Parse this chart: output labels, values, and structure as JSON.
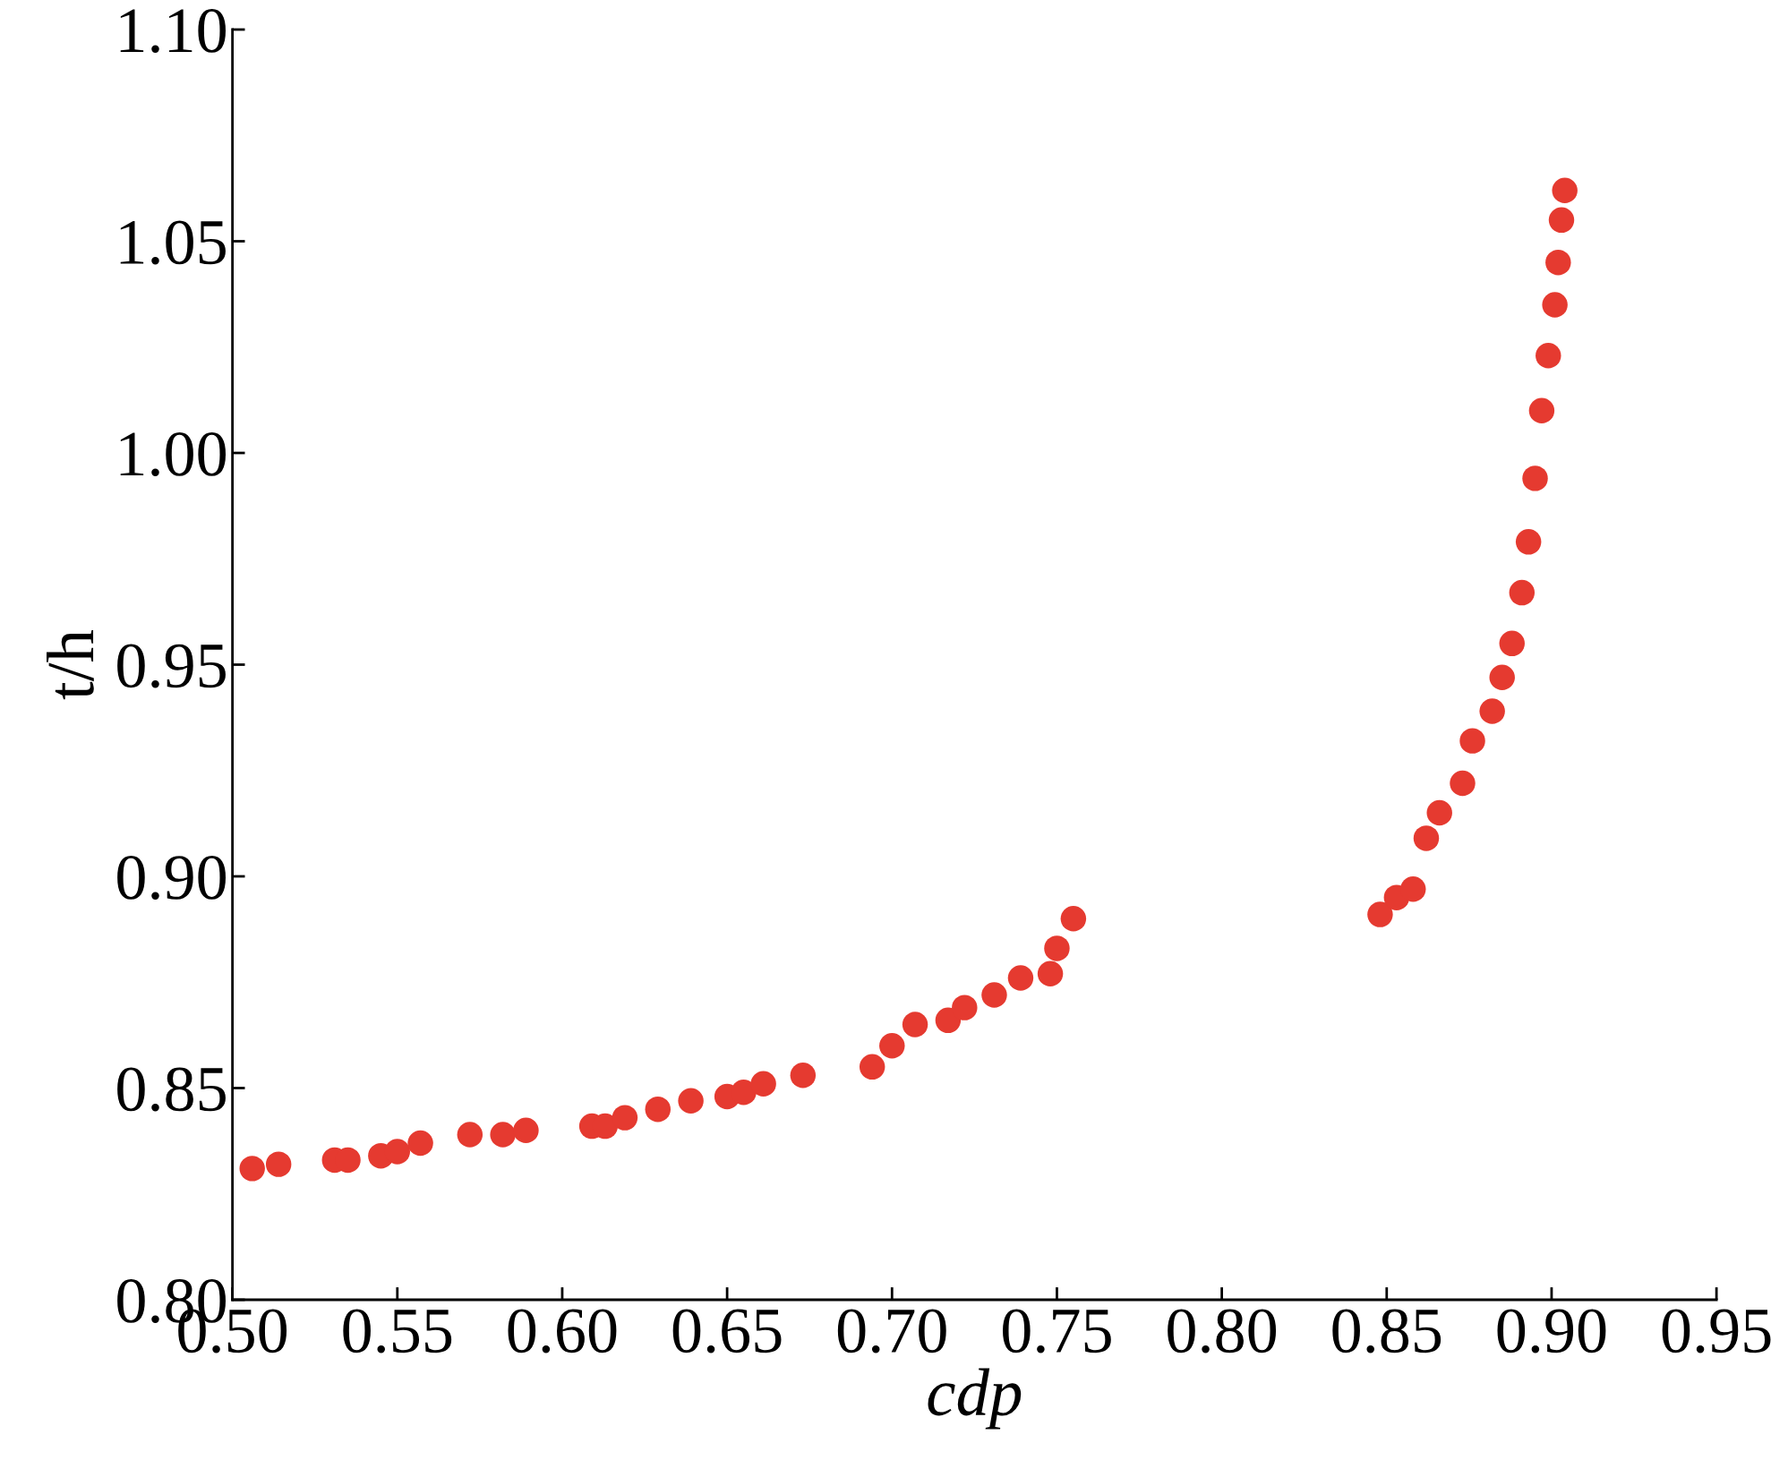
{
  "chart_data": {
    "type": "scatter",
    "xlabel": "cdp",
    "ylabel": "t/h",
    "xlim": [
      0.5,
      0.95
    ],
    "ylim": [
      0.8,
      1.1
    ],
    "xticks": [
      {
        "value": 0.5,
        "label": "0.50"
      },
      {
        "value": 0.55,
        "label": "0.55"
      },
      {
        "value": 0.6,
        "label": "0.60"
      },
      {
        "value": 0.65,
        "label": "0.65"
      },
      {
        "value": 0.7,
        "label": "0.70"
      },
      {
        "value": 0.75,
        "label": "0.75"
      },
      {
        "value": 0.8,
        "label": "0.80"
      },
      {
        "value": 0.85,
        "label": "0.85"
      },
      {
        "value": 0.9,
        "label": "0.90"
      },
      {
        "value": 0.95,
        "label": "0.95"
      }
    ],
    "yticks": [
      {
        "value": 0.8,
        "label": "0.80"
      },
      {
        "value": 0.85,
        "label": "0.85"
      },
      {
        "value": 0.9,
        "label": "0.90"
      },
      {
        "value": 0.95,
        "label": "0.95"
      },
      {
        "value": 1.0,
        "label": "1.00"
      },
      {
        "value": 1.05,
        "label": "1.05"
      },
      {
        "value": 1.1,
        "label": "1.10"
      }
    ],
    "grid": false,
    "legend": false,
    "marker": "circle",
    "series": [
      {
        "color": "#e53a30",
        "x": [
          0.506,
          0.514,
          0.531,
          0.535,
          0.545,
          0.55,
          0.557,
          0.572,
          0.582,
          0.589,
          0.609,
          0.613,
          0.619,
          0.629,
          0.639,
          0.65,
          0.655,
          0.661,
          0.673,
          0.694,
          0.7,
          0.707,
          0.717,
          0.722,
          0.731,
          0.739,
          0.748,
          0.75,
          0.755,
          0.848,
          0.853,
          0.858,
          0.862,
          0.866,
          0.873,
          0.876,
          0.882,
          0.885,
          0.888,
          0.891,
          0.893,
          0.895,
          0.897,
          0.899,
          0.901,
          0.902,
          0.903,
          0.904
        ],
        "values": [
          0.831,
          0.832,
          0.833,
          0.833,
          0.834,
          0.835,
          0.837,
          0.839,
          0.839,
          0.84,
          0.841,
          0.841,
          0.843,
          0.845,
          0.847,
          0.848,
          0.849,
          0.851,
          0.853,
          0.855,
          0.86,
          0.865,
          0.866,
          0.869,
          0.872,
          0.876,
          0.877,
          0.883,
          0.89,
          0.891,
          0.895,
          0.897,
          0.909,
          0.915,
          0.922,
          0.932,
          0.939,
          0.947,
          0.955,
          0.967,
          0.979,
          0.994,
          1.01,
          1.023,
          1.035,
          1.045,
          1.055,
          1.062
        ]
      }
    ]
  }
}
